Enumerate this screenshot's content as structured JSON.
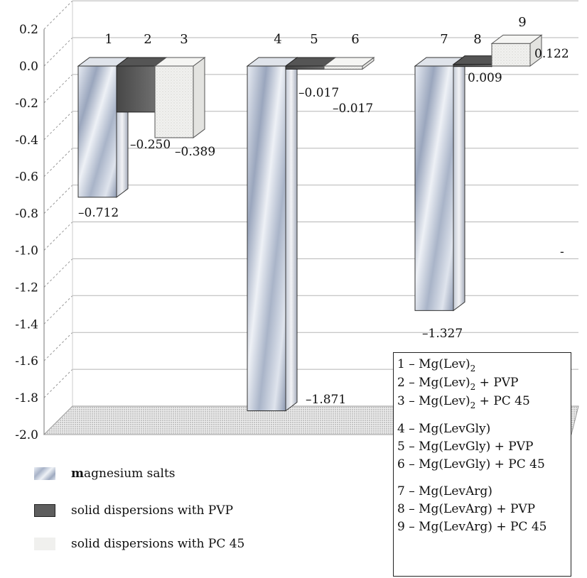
{
  "chart_data": {
    "type": "bar",
    "ylim": [
      -2.0,
      0.2
    ],
    "yticks": [
      "0.2",
      "0.0",
      "-0.2",
      "-0.4",
      "-0.6",
      "-0.8",
      "-1.0",
      "-1.2",
      "-1.4",
      "-1.6",
      "-1.8",
      "-2.0"
    ],
    "yticks_values": [
      0.2,
      0.0,
      -0.2,
      -0.4,
      -0.6,
      -0.8,
      -1.0,
      -1.2,
      -1.4,
      -1.6,
      -1.8,
      -2.0
    ],
    "grid": true,
    "groups": [
      {
        "bars": [
          {
            "num": "1",
            "value": -0.712,
            "label": "–0.712",
            "series": 0
          },
          {
            "num": "2",
            "value": -0.25,
            "label": "–0.250",
            "series": 1
          },
          {
            "num": "3",
            "value": -0.389,
            "label": "–0.389",
            "series": 2
          }
        ]
      },
      {
        "bars": [
          {
            "num": "4",
            "value": -1.871,
            "label": "–1.871",
            "series": 0
          },
          {
            "num": "5",
            "value": -0.017,
            "label": "–0.017",
            "series": 1
          },
          {
            "num": "6",
            "value": -0.017,
            "label": "–0.017",
            "series": 2
          }
        ]
      },
      {
        "bars": [
          {
            "num": "7",
            "value": -1.327,
            "label": "–1.327",
            "series": 0
          },
          {
            "num": "8",
            "value": 0.009,
            "label": "0.009",
            "series": 1
          },
          {
            "num": "9",
            "value": 0.122,
            "label": "0.122",
            "series": 2
          }
        ]
      }
    ],
    "series": [
      {
        "name": "magnesium salts",
        "color": "#b9c3d6"
      },
      {
        "name": "solid dispersions with PVP",
        "color": "#5e5e5e"
      },
      {
        "name": "solid dispersions with PC 45",
        "color": "#ececea"
      }
    ],
    "legend_placement": "bottom-left",
    "stray_mark": "-"
  },
  "legend": {
    "items": [
      {
        "bold": "m",
        "rest": "agnesium salts"
      },
      {
        "bold": "",
        "rest": "solid dispersions with PVP"
      },
      {
        "bold": "",
        "rest": "solid dispersions with PC 45"
      }
    ]
  },
  "key": {
    "lines": [
      {
        "pre": "1 – Mg(Lev)",
        "sub": "2",
        "post": ""
      },
      {
        "pre": "2 – Mg(Lev)",
        "sub": "2",
        "post": " + PVP"
      },
      {
        "pre": "3 – Mg(Lev)",
        "sub": "2",
        "post": " + PC 45"
      },
      {
        "gap": true
      },
      {
        "pre": "4 – Mg(LevGly)",
        "sub": "",
        "post": ""
      },
      {
        "pre": "5 – Mg(LevGly) + PVP",
        "sub": "",
        "post": ""
      },
      {
        "pre": "6 – Mg(LevGly) + PC 45",
        "sub": "",
        "post": ""
      },
      {
        "gap": true
      },
      {
        "pre": "7 – Mg(LevArg)",
        "sub": "",
        "post": ""
      },
      {
        "pre": "8 – Mg(LevArg) + PVP",
        "sub": "",
        "post": ""
      },
      {
        "pre": "9 – Mg(LevArg) + PC 45",
        "sub": "",
        "post": ""
      }
    ]
  }
}
